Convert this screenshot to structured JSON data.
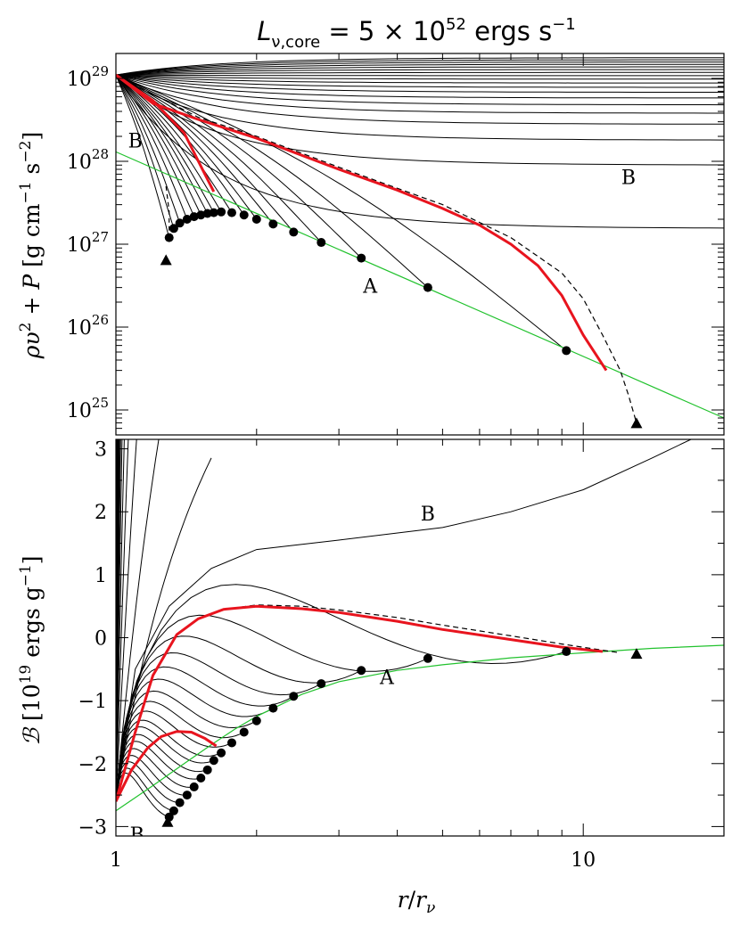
{
  "chart_data": [
    {
      "type": "line",
      "panel": "top",
      "title_main": "L",
      "title_sub": "ν,core",
      "title_rest": " = 5 × 10",
      "title_exp": "52",
      "title_unit": " ergs s",
      "title_unit_exp": "−1",
      "ylabel_main": "ρυ",
      "ylabel_exp": "2",
      "ylabel_mid": " + ",
      "ylabel_p": "P",
      "ylabel_units": " [g cm",
      "ylabel_units_exp1": "−1",
      "ylabel_units_mid": " s",
      "ylabel_units_exp2": "−2",
      "ylabel_units_end": "]",
      "xscale": "log",
      "yscale": "log",
      "xlim": [
        1,
        20
      ],
      "ylim": [
        5e+24,
        2e+29
      ],
      "ytick_mantissa": [
        "10",
        "10",
        "10",
        "10",
        "10"
      ],
      "ytick_exponent": [
        "25",
        "26",
        "27",
        "28",
        "29"
      ],
      "ytick_values": [
        1e+25,
        1e+26,
        1e+27,
        1e+28,
        1e+29
      ],
      "annotations": [
        {
          "text": "A",
          "x": 3.5,
          "y": 3e+26
        },
        {
          "text": "B",
          "x": 1.1,
          "y": 1.7e+28
        },
        {
          "text": "B",
          "x": 12.5,
          "y": 6.2e+27
        }
      ],
      "green_line": {
        "x": [
          1,
          20
        ],
        "y": [
          1.3e+28,
          8e+24
        ]
      },
      "red_curve": {
        "x": [
          1,
          1.2,
          1.5,
          2,
          3,
          4,
          5,
          6,
          7,
          8,
          9,
          10,
          11.2
        ],
        "y": [
          1.1e+29,
          5e+28,
          3.2e+28,
          1.9e+28,
          8e+27,
          4.5e+27,
          2.7e+27,
          1.7e+27,
          1e+27,
          5.5e+26,
          2.4e+26,
          8e+25,
          3e+25
        ]
      },
      "red_short": {
        "x": [
          1,
          1.2,
          1.4,
          1.55,
          1.62
        ],
        "y": [
          1.1e+29,
          5.4e+28,
          2.2e+28,
          7e+27,
          4.3e+27
        ]
      },
      "dashed_curve": {
        "x": [
          1,
          1.5,
          2,
          3,
          5,
          7,
          9,
          10,
          11,
          12,
          12.5,
          13
        ],
        "y": [
          1.1e+29,
          3.4e+28,
          2e+28,
          8.5e+27,
          3e+27,
          1.2e+27,
          4.5e+26,
          2.2e+26,
          8e+25,
          3e+25,
          1.5e+25,
          7e+24
        ]
      },
      "dashed_inner": {
        "x": [
          1.28,
          1.3,
          1.3
        ],
        "y": [
          5e+27,
          2.5e+27,
          1.1e+27
        ]
      },
      "dots": {
        "x": [
          1.3,
          1.33,
          1.37,
          1.42,
          1.47,
          1.52,
          1.57,
          1.62,
          1.68,
          1.77,
          1.88,
          2.0,
          2.17,
          2.4,
          2.75,
          3.35,
          4.65,
          9.2
        ],
        "y": [
          1.2e+27,
          1.55e+27,
          1.8e+27,
          2e+27,
          2.15e+27,
          2.25e+27,
          2.35e+27,
          2.4e+27,
          2.45e+27,
          2.4e+27,
          2.25e+27,
          2e+27,
          1.75e+27,
          1.4e+27,
          1.05e+27,
          6.8e+26,
          3e+26,
          5.2e+25
        ]
      },
      "triangles": {
        "x": [
          1.28,
          13
        ],
        "y": [
          6.5e+26,
          7e+24
        ]
      },
      "upper_curve_ends": [
        1.55e+27,
        9e+27,
        1.8e+28,
        2.8e+28,
        3.8e+28,
        4.8e+28,
        5.8e+28,
        6.8e+28,
        7.8e+28,
        8.8e+28,
        9.8e+28,
        1.08e+29,
        1.18e+29,
        1.28e+29,
        1.38e+29,
        1.48e+29,
        1.58e+29,
        1.68e+29,
        1.78e+29
      ]
    },
    {
      "type": "line",
      "panel": "bottom",
      "ylabel_main": "ℬ",
      "ylabel_units": " [10",
      "ylabel_units_exp": "19",
      "ylabel_units_end": " ergs g",
      "ylabel_units_exp2": "−1",
      "ylabel_close": "]",
      "xlabel_r": "r",
      "xlabel_slash": "/",
      "xlabel_rnu": "r",
      "xlabel_sub": "ν",
      "xscale": "log",
      "xlim": [
        1,
        20
      ],
      "ylim": [
        -3.15,
        3.15
      ],
      "yticks": [
        -3,
        -2,
        -1,
        0,
        1,
        2,
        3
      ],
      "ytick_labels": [
        "−3",
        "−2",
        "−1",
        "0",
        "1",
        "2",
        "3"
      ],
      "xticks": [
        1,
        10
      ],
      "xtick_labels": [
        "1",
        "10"
      ],
      "annotations": [
        {
          "text": "B",
          "x": 4.65,
          "y": 1.95
        },
        {
          "text": "A",
          "x": 3.8,
          "y": -0.65
        },
        {
          "text": "B",
          "x": 1.11,
          "y": -3.15
        }
      ],
      "green_curve": {
        "x": [
          1,
          1.2,
          1.4,
          1.6,
          1.8,
          2,
          2.5,
          3,
          4,
          5,
          7,
          10,
          14,
          20
        ],
        "y": [
          -2.75,
          -2.35,
          -2,
          -1.7,
          -1.45,
          -1.25,
          -0.9,
          -0.7,
          -0.52,
          -0.43,
          -0.32,
          -0.24,
          -0.17,
          -0.12
        ]
      },
      "red_curve": {
        "x": [
          1,
          1.1,
          1.2,
          1.35,
          1.5,
          1.7,
          2,
          2.5,
          3,
          4,
          5,
          7,
          9,
          11
        ],
        "y": [
          -2.6,
          -1.5,
          -0.6,
          0.05,
          0.3,
          0.45,
          0.5,
          0.46,
          0.4,
          0.26,
          0.13,
          -0.03,
          -0.15,
          -0.22
        ]
      },
      "red_short": {
        "x": [
          1,
          1.08,
          1.17,
          1.25,
          1.35,
          1.45,
          1.55,
          1.64
        ],
        "y": [
          -2.6,
          -2.1,
          -1.75,
          -1.57,
          -1.49,
          -1.5,
          -1.6,
          -1.72
        ]
      },
      "dashed_curve": {
        "x": [
          1,
          1.1,
          1.2,
          1.35,
          1.5,
          1.7,
          2,
          2.5,
          3,
          4,
          5,
          7,
          9,
          11,
          12
        ],
        "y": [
          -2.6,
          -1.5,
          -0.6,
          0.05,
          0.3,
          0.45,
          0.52,
          0.5,
          0.44,
          0.32,
          0.2,
          0.03,
          -0.1,
          -0.2,
          -0.24
        ]
      },
      "upper_curve": {
        "x": [
          1,
          1.1,
          1.3,
          1.6,
          2,
          3,
          5,
          7,
          10,
          14,
          17
        ],
        "y": [
          -2.6,
          -0.5,
          0.5,
          1.1,
          1.4,
          1.55,
          1.75,
          2.0,
          2.35,
          2.85,
          3.15
        ]
      },
      "dots": {
        "x": [
          1.3,
          1.33,
          1.37,
          1.42,
          1.47,
          1.52,
          1.57,
          1.62,
          1.68,
          1.77,
          1.88,
          2.0,
          2.17,
          2.4,
          2.75,
          3.35,
          4.65,
          9.2
        ],
        "y": [
          -2.85,
          -2.75,
          -2.62,
          -2.5,
          -2.37,
          -2.23,
          -2.1,
          -1.95,
          -1.83,
          -1.67,
          -1.5,
          -1.32,
          -1.12,
          -0.93,
          -0.73,
          -0.52,
          -0.33,
          -0.22
        ]
      },
      "triangles": {
        "x": [
          1.29,
          13
        ],
        "y": [
          -2.92,
          -0.25
        ]
      }
    }
  ]
}
